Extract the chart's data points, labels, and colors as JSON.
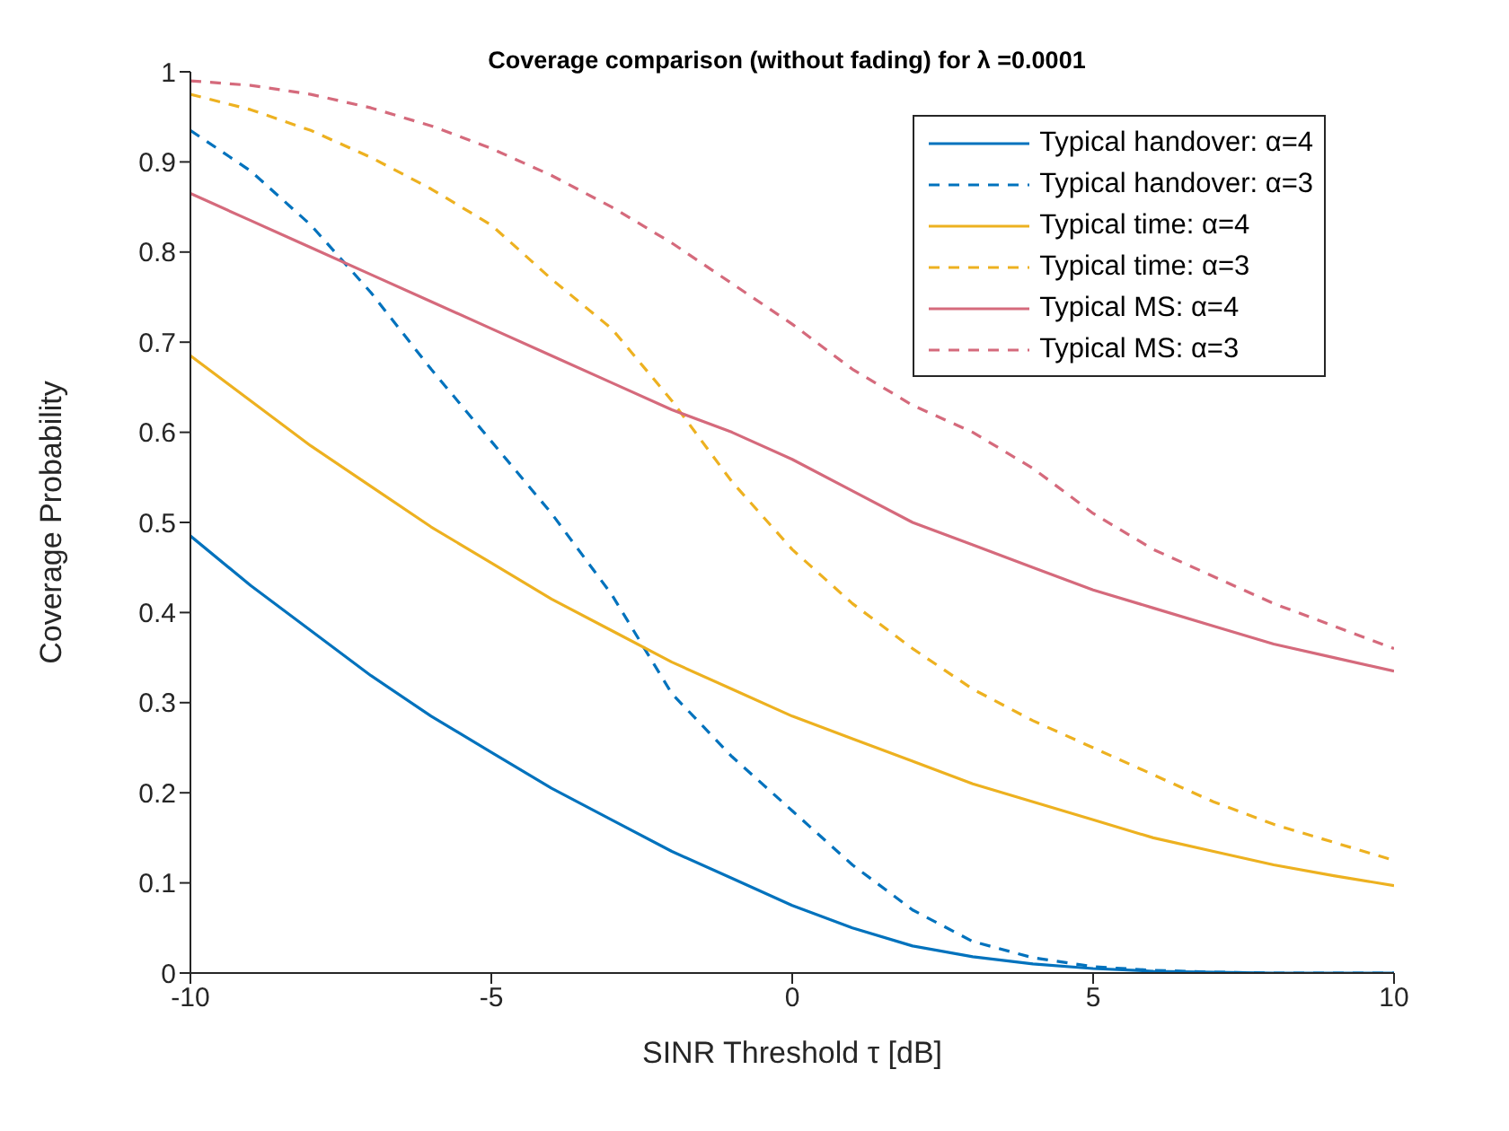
{
  "chart_data": {
    "type": "line",
    "title": "Coverage comparison (without fading) for λ =0.0001",
    "xlabel": "SINR Threshold τ [dB]",
    "ylabel": "Coverage Probability",
    "x": [
      -10,
      -9,
      -8,
      -7,
      -6,
      -5,
      -4,
      -3,
      -2,
      -1,
      0,
      1,
      2,
      3,
      4,
      5,
      6,
      7,
      8,
      9,
      10
    ],
    "series": [
      {
        "name": "Typical handover: α=4",
        "color": "#0072bd",
        "line_style": "solid",
        "values": [
          0.485,
          0.43,
          0.38,
          0.33,
          0.285,
          0.245,
          0.205,
          0.17,
          0.135,
          0.105,
          0.075,
          0.05,
          0.03,
          0.018,
          0.01,
          0.005,
          0.002,
          0.001,
          0,
          0,
          0
        ]
      },
      {
        "name": "Typical handover: α=3",
        "color": "#0072bd",
        "line_style": "dashed",
        "values": [
          0.935,
          0.89,
          0.83,
          0.755,
          0.67,
          0.59,
          0.51,
          0.42,
          0.31,
          0.24,
          0.18,
          0.12,
          0.07,
          0.035,
          0.017,
          0.007,
          0.003,
          0.001,
          0,
          0,
          0
        ]
      },
      {
        "name": "Typical time: α=4",
        "color": "#edb120",
        "line_style": "solid",
        "values": [
          0.685,
          0.635,
          0.585,
          0.54,
          0.495,
          0.455,
          0.415,
          0.38,
          0.345,
          0.315,
          0.285,
          0.26,
          0.235,
          0.21,
          0.19,
          0.17,
          0.15,
          0.135,
          0.12,
          0.108,
          0.097
        ]
      },
      {
        "name": "Typical time: α=3",
        "color": "#edb120",
        "line_style": "dashed",
        "values": [
          0.975,
          0.958,
          0.935,
          0.905,
          0.87,
          0.83,
          0.77,
          0.715,
          0.635,
          0.545,
          0.47,
          0.41,
          0.36,
          0.315,
          0.28,
          0.25,
          0.22,
          0.19,
          0.165,
          0.145,
          0.125
        ]
      },
      {
        "name": "Typical MS: α=4",
        "color": "#d56a7c",
        "line_style": "solid",
        "values": [
          0.865,
          0.835,
          0.805,
          0.775,
          0.745,
          0.715,
          0.685,
          0.655,
          0.625,
          0.6,
          0.57,
          0.535,
          0.5,
          0.475,
          0.45,
          0.425,
          0.405,
          0.385,
          0.365,
          0.35,
          0.335
        ]
      },
      {
        "name": "Typical MS: α=3",
        "color": "#d56a7c",
        "line_style": "dashed",
        "values": [
          0.99,
          0.985,
          0.975,
          0.96,
          0.94,
          0.915,
          0.885,
          0.85,
          0.81,
          0.765,
          0.72,
          0.67,
          0.63,
          0.6,
          0.56,
          0.51,
          0.47,
          0.44,
          0.41,
          0.385,
          0.36
        ]
      }
    ],
    "xlim": [
      -10,
      10
    ],
    "xticks": [
      -10,
      -5,
      0,
      5,
      10
    ],
    "ylim": [
      0,
      1
    ],
    "yticks": [
      0,
      0.1,
      0.2,
      0.3,
      0.4,
      0.5,
      0.6,
      0.7,
      0.8,
      0.9,
      1
    ],
    "legend": "top right",
    "grid": false,
    "marker": "none"
  }
}
